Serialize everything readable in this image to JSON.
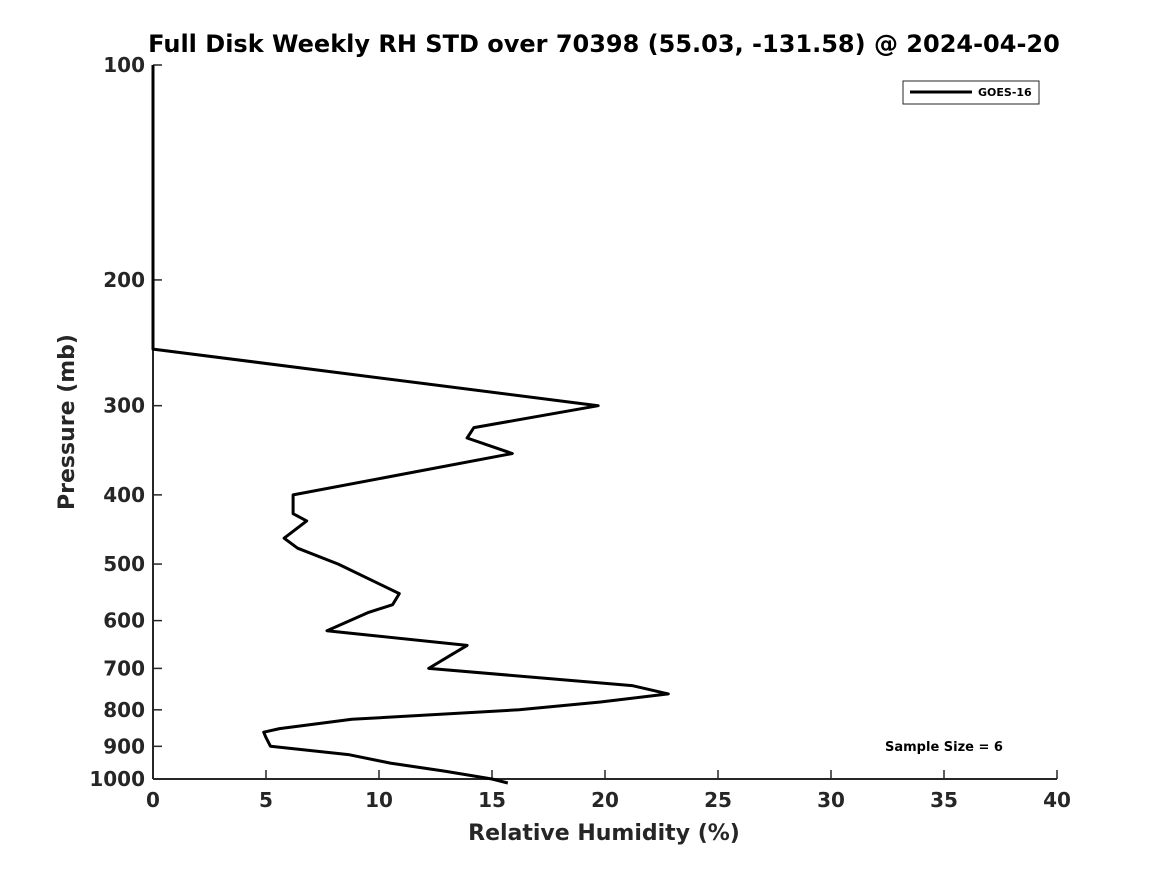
{
  "chart_data": {
    "type": "line",
    "title": "Full Disk Weekly RH STD over 70398 (55.03, -131.58) @ 2024-04-20",
    "xlabel": "Relative Humidity (%)",
    "ylabel": "Pressure (mb)",
    "xlim": [
      0,
      40
    ],
    "ylim": [
      1000,
      100
    ],
    "y_scale": "log",
    "x_ticks": [
      0,
      5,
      10,
      15,
      20,
      25,
      30,
      35,
      40
    ],
    "y_ticks": [
      100,
      200,
      300,
      400,
      500,
      600,
      700,
      800,
      900,
      1000
    ],
    "grid": false,
    "legend_position": "top-right",
    "annotation": "Sample Size = 6",
    "series": [
      {
        "name": "GOES-16",
        "color": "#000000",
        "x": [
          0,
          0,
          0,
          0,
          0,
          0,
          0,
          19.7,
          14.2,
          13.9,
          15.9,
          6.2,
          6.2,
          6.8,
          5.8,
          6.4,
          8.2,
          10.9,
          10.6,
          9.5,
          7.7,
          13.9,
          13.2,
          12.2,
          21.2,
          22.8,
          19.8,
          16.2,
          8.8,
          5.6,
          4.9,
          5.0,
          5.2,
          8.7,
          10.5,
          12.9,
          15.0,
          15.7
        ],
        "y": [
          100,
          125,
          150,
          175,
          200,
          225,
          250,
          300,
          322,
          333,
          350,
          400,
          425,
          435,
          460,
          475,
          500,
          550,
          570,
          585,
          620,
          650,
          670,
          700,
          740,
          760,
          780,
          800,
          825,
          850,
          860,
          875,
          900,
          925,
          950,
          975,
          1000,
          1013
        ]
      }
    ]
  }
}
